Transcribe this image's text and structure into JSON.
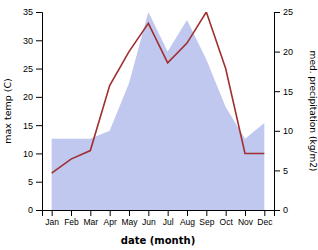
{
  "chart_data": {
    "type": "line",
    "categories": [
      "Jan",
      "Feb",
      "Mar",
      "Apr",
      "May",
      "Jun",
      "Jul",
      "Aug",
      "Sep",
      "Oct",
      "Nov",
      "Dec"
    ],
    "xlabel": "date (month)",
    "ylabel": "max temp (C)",
    "y2label": "med. precipitation (kg/m2)",
    "series": [
      {
        "type": "area",
        "axis": "y2",
        "color": "#c0c8f0",
        "values": [
          9.0,
          9.0,
          9.0,
          10.0,
          16.0,
          25.0,
          20.0,
          24.0,
          19.0,
          13.0,
          9.0,
          11.0
        ]
      },
      {
        "type": "line",
        "color": "#a03030",
        "values": [
          6.5,
          9.0,
          10.5,
          22.0,
          28.0,
          33.0,
          26.0,
          29.5,
          35.0,
          25.0,
          10.0,
          10.0
        ]
      }
    ],
    "ylim": [
      0,
      35
    ],
    "yticks": [
      0,
      5,
      10,
      15,
      20,
      25,
      30,
      35
    ],
    "y2lim": [
      0,
      25
    ],
    "y2ticks": [
      0,
      5,
      10,
      15,
      20,
      25
    ],
    "grid": false
  }
}
